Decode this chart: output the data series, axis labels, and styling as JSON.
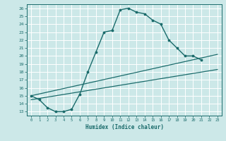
{
  "bg_color": "#cce8e8",
  "grid_color": "#ffffff",
  "line_color": "#1a6b6b",
  "xlabel": "Humidex (Indice chaleur)",
  "xlim": [
    -0.5,
    23.5
  ],
  "ylim": [
    12.5,
    26.5
  ],
  "xticks": [
    0,
    1,
    2,
    3,
    4,
    5,
    6,
    7,
    8,
    9,
    10,
    11,
    12,
    13,
    14,
    15,
    16,
    17,
    18,
    19,
    20,
    21,
    22,
    23
  ],
  "yticks": [
    13,
    14,
    15,
    16,
    17,
    18,
    19,
    20,
    21,
    22,
    23,
    24,
    25,
    26
  ],
  "main_x": [
    0,
    1,
    2,
    3,
    4,
    5,
    6,
    7,
    8,
    9,
    10,
    11,
    12,
    13,
    14,
    15,
    16,
    17,
    18,
    19,
    20,
    21
  ],
  "main_y": [
    15.0,
    14.5,
    13.5,
    13.0,
    13.0,
    13.3,
    15.2,
    18.0,
    20.5,
    23.0,
    23.2,
    25.8,
    26.0,
    25.5,
    25.3,
    24.5,
    24.0,
    22.0,
    21.0,
    20.0,
    20.0,
    19.5
  ],
  "line2_x": [
    0,
    23
  ],
  "line2_y": [
    14.5,
    18.3
  ],
  "line3_x": [
    0,
    23
  ],
  "line3_y": [
    15.0,
    20.2
  ]
}
